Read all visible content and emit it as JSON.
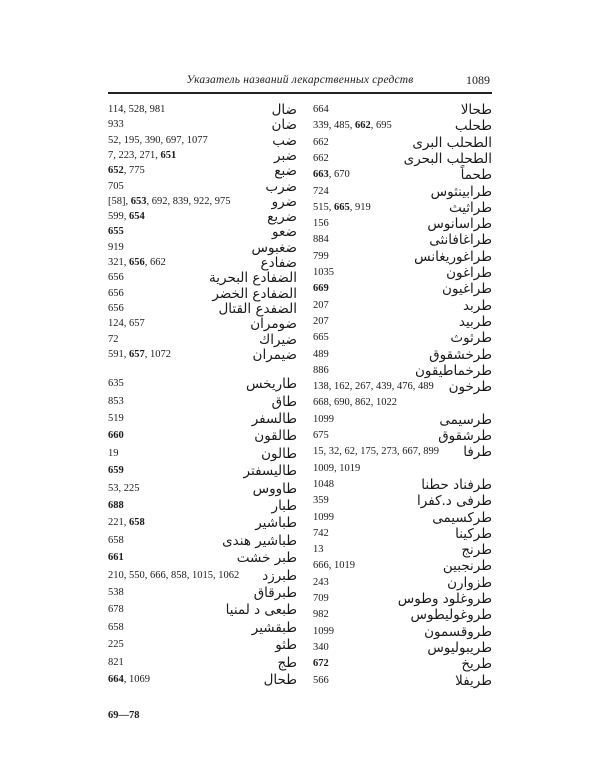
{
  "header": {
    "title": "Указатель названий лекарственных средств",
    "page_number": "1089"
  },
  "left_column": [
    {
      "word": "ضال",
      "refs": [
        [
          "114",
          0
        ],
        [
          "528",
          0
        ],
        [
          "981",
          0
        ]
      ]
    },
    {
      "word": "ضان",
      "refs": [
        [
          "933",
          0
        ]
      ]
    },
    {
      "word": "ضب",
      "refs": [
        [
          "52",
          0
        ],
        [
          "195",
          0
        ],
        [
          "390",
          0
        ],
        [
          "697",
          0
        ],
        [
          "1077",
          0
        ]
      ]
    },
    {
      "word": "ضبر",
      "refs": [
        [
          "7",
          0
        ],
        [
          "223",
          0
        ],
        [
          "271",
          0
        ],
        [
          "651",
          1
        ]
      ]
    },
    {
      "word": "ضبع",
      "refs": [
        [
          "652",
          1
        ],
        [
          "775",
          0
        ]
      ]
    },
    {
      "word": "ضرب",
      "refs": [
        [
          "705",
          0
        ]
      ]
    },
    {
      "word": "ضرو",
      "refs": [
        [
          "[58]",
          0
        ],
        [
          "653",
          1
        ],
        [
          "692",
          0
        ],
        [
          "839",
          0
        ],
        [
          "922",
          0
        ],
        [
          "975",
          0
        ]
      ]
    },
    {
      "word": "ضريع",
      "refs": [
        [
          "599",
          0
        ],
        [
          "654",
          1
        ]
      ]
    },
    {
      "word": "ضعو",
      "refs": [
        [
          "655",
          1
        ]
      ]
    },
    {
      "word": "ضغبوس",
      "refs": [
        [
          "919",
          0
        ]
      ]
    },
    {
      "word": "ضفادع",
      "refs": [
        [
          "321",
          0
        ],
        [
          "656",
          1
        ],
        [
          "662",
          0
        ]
      ]
    },
    {
      "word": "الضفادع البحرية",
      "refs": [
        [
          "656",
          0
        ]
      ]
    },
    {
      "word": "الضفادع الخضر",
      "refs": [
        [
          "656",
          0
        ]
      ]
    },
    {
      "word": "الضفدع القتال",
      "refs": [
        [
          "656",
          0
        ]
      ]
    },
    {
      "word": "ضومران",
      "refs": [
        [
          "124",
          0
        ],
        [
          "657",
          0
        ]
      ]
    },
    {
      "word": "ضيراك",
      "refs": [
        [
          "72",
          0
        ]
      ]
    },
    {
      "word": "ضيمران",
      "refs": [
        [
          "591",
          0
        ],
        [
          "657",
          1
        ],
        [
          "1072",
          0
        ]
      ]
    },
    {
      "word": "طاريخس",
      "refs": [
        [
          "635",
          0
        ]
      ],
      "gap": true
    },
    {
      "word": "طاق",
      "refs": [
        [
          "853",
          0
        ]
      ]
    },
    {
      "word": "طالسفر",
      "refs": [
        [
          "519",
          0
        ]
      ]
    },
    {
      "word": "طالقون",
      "refs": [
        [
          "660",
          1
        ]
      ]
    },
    {
      "word": "طالون",
      "refs": [
        [
          "19",
          0
        ]
      ]
    },
    {
      "word": "طاليسفتر",
      "refs": [
        [
          "659",
          1
        ]
      ]
    },
    {
      "word": "طاووس",
      "refs": [
        [
          "53",
          0
        ],
        [
          "225",
          0
        ]
      ]
    },
    {
      "word": "طبار",
      "refs": [
        [
          "688",
          1
        ]
      ]
    },
    {
      "word": "طباشير",
      "refs": [
        [
          "221",
          0
        ],
        [
          "658",
          1
        ]
      ]
    },
    {
      "word": "طباشير هندى",
      "refs": [
        [
          "658",
          0
        ]
      ]
    },
    {
      "word": "طبر خشت",
      "refs": [
        [
          "661",
          1
        ]
      ]
    },
    {
      "word": "طبرزد",
      "refs": [
        [
          "210",
          0
        ],
        [
          "550",
          0
        ],
        [
          "666",
          0
        ],
        [
          "858",
          0
        ],
        [
          "1015",
          0
        ],
        [
          "1062",
          0
        ]
      ]
    },
    {
      "word": "طبرقاق",
      "refs": [
        [
          "538",
          0
        ]
      ]
    },
    {
      "word": "طبعى د لمنيا",
      "refs": [
        [
          "678",
          0
        ]
      ]
    },
    {
      "word": "طبقشير",
      "refs": [
        [
          "658",
          0
        ]
      ]
    },
    {
      "word": "طثو",
      "refs": [
        [
          "225",
          0
        ]
      ]
    },
    {
      "word": "طج",
      "refs": [
        [
          "821",
          0
        ]
      ]
    },
    {
      "word": "طحال",
      "refs": [
        [
          "664",
          1
        ],
        [
          "1069",
          0
        ]
      ]
    }
  ],
  "right_column": [
    {
      "word": "طحالا",
      "refs": [
        [
          "664",
          0
        ]
      ]
    },
    {
      "word": "طحلب",
      "refs": [
        [
          "339",
          0
        ],
        [
          "485",
          0
        ],
        [
          "662",
          1
        ],
        [
          "695",
          0
        ]
      ]
    },
    {
      "word": "الطحلب البرى",
      "refs": [
        [
          "662",
          0
        ]
      ]
    },
    {
      "word": "الطحلب البحرى",
      "refs": [
        [
          "662",
          0
        ]
      ]
    },
    {
      "word": "طحماً",
      "refs": [
        [
          "663",
          1
        ],
        [
          "670",
          0
        ]
      ]
    },
    {
      "word": "طرابينثوس",
      "refs": [
        [
          "724",
          0
        ]
      ]
    },
    {
      "word": "طراثيث",
      "refs": [
        [
          "515",
          0
        ],
        [
          "665",
          1
        ],
        [
          "919",
          0
        ]
      ]
    },
    {
      "word": "طراسانوس",
      "refs": [
        [
          "156",
          0
        ]
      ]
    },
    {
      "word": "طراغافانثى",
      "refs": [
        [
          "884",
          0
        ]
      ]
    },
    {
      "word": "طراغوريغانس",
      "refs": [
        [
          "799",
          0
        ]
      ]
    },
    {
      "word": "طراغون",
      "refs": [
        [
          "1035",
          0
        ]
      ]
    },
    {
      "word": "طراغيون",
      "refs": [
        [
          "669",
          1
        ]
      ]
    },
    {
      "word": "طربد",
      "refs": [
        [
          "207",
          0
        ]
      ]
    },
    {
      "word": "طربيد",
      "refs": [
        [
          "207",
          0
        ]
      ]
    },
    {
      "word": "طرثوث",
      "refs": [
        [
          "665",
          0
        ]
      ]
    },
    {
      "word": "طرخشقوق",
      "refs": [
        [
          "489",
          0
        ]
      ]
    },
    {
      "word": "طرخماطيقون",
      "refs": [
        [
          "886",
          0
        ]
      ]
    },
    {
      "word": "طرخون",
      "refs": [
        [
          "138",
          0
        ],
        [
          "162",
          0
        ],
        [
          "267",
          0
        ],
        [
          "439",
          0
        ],
        [
          "476",
          0
        ],
        [
          "489",
          0
        ]
      ],
      "refs2": [
        [
          "668",
          0
        ],
        [
          "690",
          0
        ],
        [
          "862",
          0
        ],
        [
          "1022",
          0
        ]
      ]
    },
    {
      "word": "طرسيمى",
      "refs": [
        [
          "1099",
          0
        ]
      ]
    },
    {
      "word": "طرشقوق",
      "refs": [
        [
          "675",
          0
        ]
      ]
    },
    {
      "word": "طرفا",
      "refs": [
        [
          "15",
          0
        ],
        [
          "32",
          0
        ],
        [
          "62",
          0
        ],
        [
          "175",
          0
        ],
        [
          "273",
          0
        ],
        [
          "667",
          0
        ],
        [
          "899",
          0
        ]
      ],
      "refs2": [
        [
          "1009",
          0
        ],
        [
          "1019",
          0
        ]
      ]
    },
    {
      "word": "طرفناد حطنا",
      "refs": [
        [
          "1048",
          0
        ]
      ]
    },
    {
      "word": "طرفى د.كفرا",
      "refs": [
        [
          "359",
          0
        ]
      ]
    },
    {
      "word": "طركسيمى",
      "refs": [
        [
          "1099",
          0
        ]
      ]
    },
    {
      "word": "طركينا",
      "refs": [
        [
          "742",
          0
        ]
      ]
    },
    {
      "word": "طرنج",
      "refs": [
        [
          "13",
          0
        ]
      ]
    },
    {
      "word": "طرنجبين",
      "refs": [
        [
          "666",
          0
        ],
        [
          "1019",
          0
        ]
      ]
    },
    {
      "word": "طزوارن",
      "refs": [
        [
          "243",
          0
        ]
      ]
    },
    {
      "word": "طروغلود وطوس",
      "refs": [
        [
          "709",
          0
        ]
      ]
    },
    {
      "word": "طروغوليطوس",
      "refs": [
        [
          "982",
          0
        ]
      ]
    },
    {
      "word": "طروقسمون",
      "refs": [
        [
          "1099",
          0
        ]
      ]
    },
    {
      "word": "طريبوليوس",
      "refs": [
        [
          "340",
          0
        ]
      ]
    },
    {
      "word": "طريخ",
      "refs": [
        [
          "672",
          1
        ]
      ]
    },
    {
      "word": "طريفلا",
      "refs": [
        [
          "566",
          0
        ]
      ]
    }
  ],
  "signature": "69—78"
}
